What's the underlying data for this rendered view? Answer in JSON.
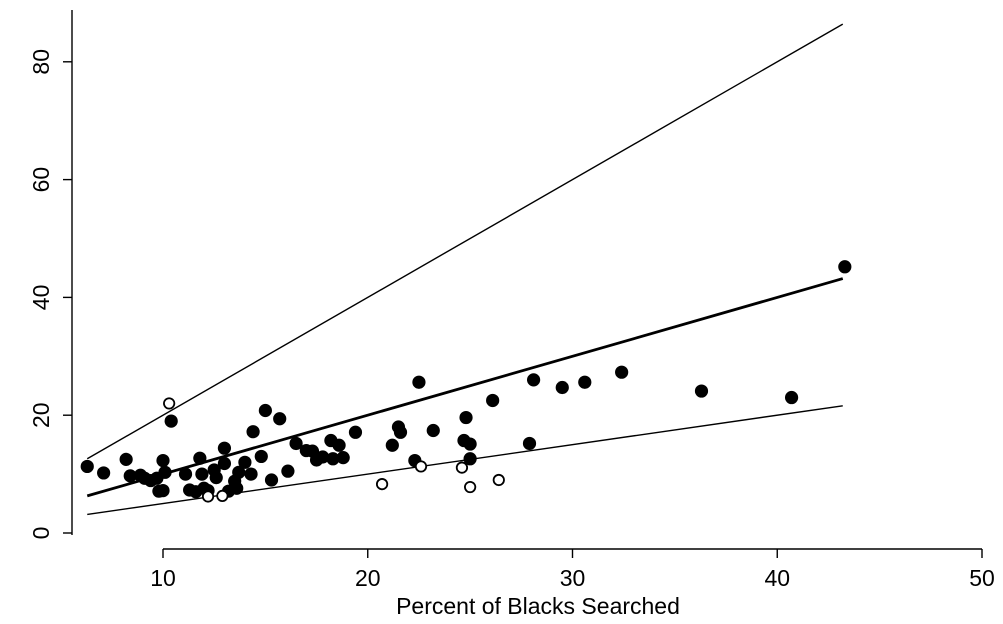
{
  "chart_data": {
    "type": "scatter",
    "title": "",
    "xlabel": "Percent of Blacks Searched",
    "ylabel": "",
    "xlim": [
      6.2,
      51
    ],
    "ylim": [
      -1.5,
      89
    ],
    "x_ticks": [
      10,
      20,
      30,
      40,
      50
    ],
    "y_ticks": [
      0,
      20,
      40,
      60,
      80
    ],
    "x_tick_labels": [
      "10",
      "20",
      "30",
      "40",
      "50"
    ],
    "y_tick_labels": [
      "0",
      "20",
      "40",
      "60",
      "80"
    ],
    "grid": false,
    "legend": "none",
    "series": [
      {
        "marker": "filled-circle",
        "points": [
          [
            6.3,
            11.3
          ],
          [
            7.1,
            10.2
          ],
          [
            8.2,
            12.5
          ],
          [
            8.4,
            9.7
          ],
          [
            8.9,
            9.8
          ],
          [
            9.1,
            9.3
          ],
          [
            9.4,
            8.9
          ],
          [
            9.7,
            9.3
          ],
          [
            9.8,
            7.1
          ],
          [
            10.0,
            7.2
          ],
          [
            10.0,
            12.3
          ],
          [
            10.1,
            10.3
          ],
          [
            10.4,
            19.0
          ],
          [
            11.1,
            10.0
          ],
          [
            11.3,
            7.3
          ],
          [
            11.6,
            7.0
          ],
          [
            11.8,
            12.7
          ],
          [
            11.9,
            10.0
          ],
          [
            12.0,
            7.6
          ],
          [
            12.2,
            7.2
          ],
          [
            12.5,
            10.7
          ],
          [
            12.6,
            9.4
          ],
          [
            13.0,
            11.8
          ],
          [
            13.0,
            14.4
          ],
          [
            13.2,
            7.1
          ],
          [
            13.5,
            8.8
          ],
          [
            13.7,
            10.3
          ],
          [
            13.6,
            7.6
          ],
          [
            14.0,
            12.0
          ],
          [
            14.3,
            10.0
          ],
          [
            14.4,
            17.2
          ],
          [
            14.8,
            13.0
          ],
          [
            15.0,
            20.8
          ],
          [
            15.3,
            9.0
          ],
          [
            15.7,
            19.4
          ],
          [
            16.1,
            10.5
          ],
          [
            16.5,
            15.2
          ],
          [
            17.0,
            14.0
          ],
          [
            17.3,
            13.9
          ],
          [
            17.5,
            12.4
          ],
          [
            17.8,
            12.9
          ],
          [
            18.2,
            15.7
          ],
          [
            18.3,
            12.6
          ],
          [
            18.6,
            14.9
          ],
          [
            18.8,
            12.8
          ],
          [
            19.4,
            17.1
          ],
          [
            21.2,
            14.9
          ],
          [
            21.5,
            18.0
          ],
          [
            21.6,
            17.1
          ],
          [
            22.3,
            12.3
          ],
          [
            22.5,
            25.6
          ],
          [
            23.2,
            17.4
          ],
          [
            24.7,
            15.7
          ],
          [
            24.8,
            19.6
          ],
          [
            25.0,
            15.1
          ],
          [
            25.0,
            12.6
          ],
          [
            26.1,
            22.5
          ],
          [
            27.9,
            15.2
          ],
          [
            28.1,
            26.0
          ],
          [
            29.5,
            24.7
          ],
          [
            30.6,
            25.6
          ],
          [
            32.4,
            27.3
          ],
          [
            36.3,
            24.1
          ],
          [
            40.7,
            23.0
          ],
          [
            43.3,
            45.2
          ]
        ]
      },
      {
        "marker": "hollow-circle",
        "points": [
          [
            10.3,
            22.0
          ],
          [
            12.2,
            6.2
          ],
          [
            12.9,
            6.3
          ],
          [
            20.7,
            8.3
          ],
          [
            22.6,
            11.3
          ],
          [
            24.6,
            11.1
          ],
          [
            25.0,
            7.8
          ],
          [
            26.4,
            9.0
          ]
        ]
      }
    ],
    "lines": [
      {
        "slope": 2.0,
        "intercept": 0,
        "x_range": [
          6.3,
          43.2
        ],
        "weight": "thin"
      },
      {
        "slope": 1.0,
        "intercept": 0,
        "x_range": [
          6.3,
          43.2
        ],
        "weight": "thick"
      },
      {
        "slope": 0.5,
        "intercept": 0,
        "x_range": [
          6.3,
          43.2
        ],
        "weight": "thin"
      }
    ],
    "colors": {
      "marker": "#000000",
      "line": "#000000",
      "background": "#ffffff"
    }
  }
}
